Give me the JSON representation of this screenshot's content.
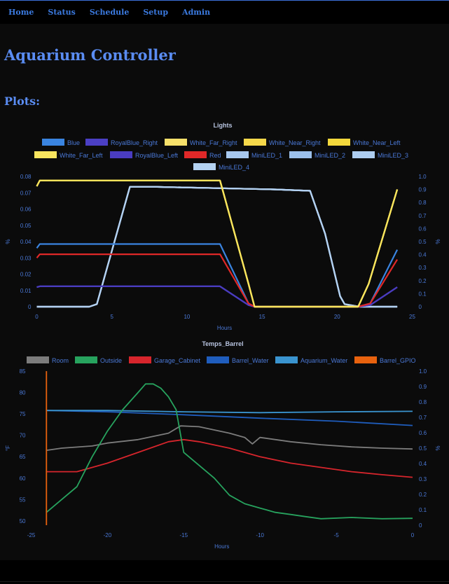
{
  "nav": {
    "items": [
      {
        "label": "Home"
      },
      {
        "label": "Status"
      },
      {
        "label": "Schedule"
      },
      {
        "label": "Setup"
      },
      {
        "label": "Admin"
      }
    ]
  },
  "page": {
    "title": "Aquarium Controller",
    "subtitle": "Plots:"
  },
  "colors": {
    "background": "#0b0b0b",
    "nav_link": "#3b7ae0",
    "heading": "#5a8cf2",
    "axis_text": "#4a78d6"
  },
  "chart_data": [
    {
      "type": "line",
      "title": "Lights",
      "xlabel": "Hours",
      "ylabel": "%",
      "y2label": "%",
      "xlim": [
        0,
        25
      ],
      "ylim": [
        0,
        0.08
      ],
      "y2lim": [
        0,
        1.0
      ],
      "x_ticks": [
        0,
        5,
        10,
        15,
        20,
        25
      ],
      "y_ticks": [
        0,
        0.01,
        0.02,
        0.03,
        0.04,
        0.05,
        0.06,
        0.07,
        0.08
      ],
      "y_tick_labels": [
        "0",
        "0.01",
        "0.02",
        "0.03",
        "0.04",
        "0.05",
        "0.06",
        "0.07",
        "0.08"
      ],
      "y2_ticks": [
        0,
        0.1,
        0.2,
        0.3,
        0.4,
        0.5,
        0.6,
        0.7,
        0.8,
        0.9,
        1.0
      ],
      "y2_tick_labels": [
        "0",
        "0.1",
        "0.2",
        "0.3",
        "0.4",
        "0.5",
        "0.6",
        "0.7",
        "0.8",
        "0.9",
        "1.0"
      ],
      "grid": false,
      "legend_position": "top",
      "series": [
        {
          "name": "Blue",
          "color": "#3a84e0",
          "axis": "y",
          "x": [
            0,
            0.2,
            12.2,
            14.1,
            14.5,
            21.4,
            22.2,
            24
          ],
          "y": [
            0.036,
            0.0385,
            0.0385,
            0.002,
            0,
            0,
            0.002,
            0.035
          ]
        },
        {
          "name": "RoyalBlue_Right",
          "color": "#4b3fc4",
          "axis": "y",
          "x": [
            0,
            0.2,
            12.2,
            14.1,
            14.5,
            21.4,
            22.2,
            24
          ],
          "y": [
            0.012,
            0.0125,
            0.0125,
            0.001,
            0,
            0,
            0.001,
            0.012
          ]
        },
        {
          "name": "White_Far_Right",
          "color": "#f7e06a",
          "axis": "y",
          "x": [
            0,
            0.2,
            12.2,
            14.1,
            14.5,
            21.4,
            22.1,
            24
          ],
          "y": [
            0.074,
            0.0775,
            0.0775,
            0.014,
            0,
            0,
            0.014,
            0.072
          ]
        },
        {
          "name": "White_Near_Right",
          "color": "#f5d84a",
          "axis": "y",
          "x": [
            0,
            0.2,
            12.2,
            14.1,
            14.5,
            21.4,
            22.1,
            24
          ],
          "y": [
            0.074,
            0.0775,
            0.0775,
            0.014,
            0,
            0,
            0.014,
            0.072
          ]
        },
        {
          "name": "White_Near_Left",
          "color": "#f3d83c",
          "axis": "y",
          "x": [
            0,
            0.2,
            12.2,
            14.1,
            14.5,
            21.4,
            22.1,
            24
          ],
          "y": [
            0.074,
            0.0775,
            0.0775,
            0.014,
            0,
            0,
            0.014,
            0.072
          ]
        },
        {
          "name": "White_Far_Left",
          "color": "#f9e55e",
          "axis": "y",
          "x": [
            0,
            0.2,
            12.2,
            14.1,
            14.5,
            21.4,
            22.1,
            24
          ],
          "y": [
            0.074,
            0.0775,
            0.0775,
            0.014,
            0,
            0,
            0.014,
            0.072
          ]
        },
        {
          "name": "RoyalBlue_Left",
          "color": "#4a3cc0",
          "axis": "y",
          "x": [
            0,
            0.2,
            12.2,
            14.1,
            14.5,
            21.4,
            22.2,
            24
          ],
          "y": [
            0.012,
            0.0125,
            0.0125,
            0.001,
            0,
            0,
            0.001,
            0.012
          ]
        },
        {
          "name": "Red",
          "color": "#e02828",
          "axis": "y",
          "x": [
            0,
            0.2,
            12.2,
            14.1,
            14.5,
            21.4,
            22.2,
            24
          ],
          "y": [
            0.03,
            0.0322,
            0.0322,
            0.002,
            0,
            0,
            0.002,
            0.029
          ]
        },
        {
          "name": "MiniLED_1",
          "color": "#a8c8ee",
          "axis": "y2",
          "x": [
            0,
            3.5,
            4,
            6.2,
            8,
            12,
            16,
            18.2,
            19.2,
            20.2,
            20.5,
            21.5,
            22,
            24
          ],
          "y": [
            0,
            0,
            0.02,
            0.92,
            0.92,
            0.91,
            0.9,
            0.89,
            0.56,
            0.08,
            0.02,
            0,
            0,
            0
          ]
        },
        {
          "name": "MiniLED_2",
          "color": "#9cc0ea",
          "axis": "y2",
          "x": [
            0,
            3.5,
            4,
            6.2,
            8,
            12,
            16,
            18.2,
            19.2,
            20.2,
            20.5,
            21.5,
            22,
            24
          ],
          "y": [
            0,
            0,
            0.02,
            0.92,
            0.92,
            0.91,
            0.9,
            0.89,
            0.56,
            0.08,
            0.02,
            0,
            0,
            0
          ]
        },
        {
          "name": "MiniLED_3",
          "color": "#aecdf0",
          "axis": "y2",
          "x": [
            0,
            3.5,
            4,
            6.2,
            8,
            12,
            16,
            18.2,
            19.2,
            20.2,
            20.5,
            21.5,
            22,
            24
          ],
          "y": [
            0,
            0,
            0.02,
            0.92,
            0.92,
            0.91,
            0.9,
            0.89,
            0.56,
            0.08,
            0.02,
            0,
            0,
            0
          ]
        },
        {
          "name": "MiniLED_4",
          "color": "#b4d2f2",
          "axis": "y2",
          "x": [
            0,
            3.5,
            4,
            6.2,
            8,
            12,
            16,
            18.2,
            19.2,
            20.2,
            20.5,
            21.5,
            22,
            24
          ],
          "y": [
            0,
            0,
            0.02,
            0.92,
            0.92,
            0.91,
            0.9,
            0.89,
            0.56,
            0.08,
            0.02,
            0,
            0,
            0
          ]
        }
      ]
    },
    {
      "type": "line",
      "title": "Temps_Barrel",
      "xlabel": "Hours",
      "ylabel": "°F",
      "y2label": "%",
      "xlim": [
        -25,
        0
      ],
      "ylim": [
        49,
        85
      ],
      "y2lim": [
        0,
        1.0
      ],
      "x_ticks": [
        -25,
        -20,
        -15,
        -10,
        -5,
        0
      ],
      "y_ticks": [
        50,
        55,
        60,
        65,
        70,
        75,
        80,
        85
      ],
      "y2_ticks": [
        0,
        0.1,
        0.2,
        0.3,
        0.4,
        0.5,
        0.6,
        0.7,
        0.8,
        0.9,
        1.0
      ],
      "y2_tick_labels": [
        "0",
        "0.1",
        "0.2",
        "0.3",
        "0.4",
        "0.5",
        "0.6",
        "0.7",
        "0.8",
        "0.9",
        "1.0"
      ],
      "grid": false,
      "legend_position": "top",
      "series": [
        {
          "name": "Room",
          "color": "#7c7c7c",
          "axis": "y",
          "x": [
            -24,
            -23,
            -21,
            -20,
            -18,
            -16,
            -15.2,
            -14,
            -12,
            -11,
            -10.5,
            -10,
            -8,
            -6,
            -4,
            -2,
            0
          ],
          "y": [
            66.5,
            67,
            67.5,
            68.2,
            69,
            70.5,
            72.2,
            72,
            70.5,
            69.5,
            68,
            69.5,
            68.5,
            67.8,
            67.3,
            67,
            66.8
          ]
        },
        {
          "name": "Outside",
          "color": "#27a35e",
          "axis": "y",
          "x": [
            -24,
            -23,
            -22,
            -21,
            -20,
            -19,
            -18,
            -17.5,
            -17,
            -16.5,
            -16,
            -15.5,
            -15,
            -14,
            -13,
            -12,
            -11,
            -10,
            -9,
            -8,
            -7,
            -6,
            -4,
            -2,
            0
          ],
          "y": [
            52,
            55,
            58,
            65,
            71,
            76,
            80,
            82,
            82,
            81,
            79,
            76,
            66,
            63,
            60,
            56,
            54,
            53,
            52,
            51.5,
            51,
            50.5,
            50.8,
            50.5,
            50.6
          ]
        },
        {
          "name": "Garage_Cabinet",
          "color": "#d7252c",
          "axis": "y",
          "x": [
            -24,
            -22,
            -20,
            -18,
            -16,
            -15,
            -14,
            -12,
            -10,
            -8,
            -6,
            -4,
            -2,
            0
          ],
          "y": [
            61.5,
            61.5,
            63.5,
            66,
            68.5,
            69,
            68.5,
            67,
            65,
            63.5,
            62.5,
            61.5,
            60.8,
            60.2
          ]
        },
        {
          "name": "Barrel_Water",
          "color": "#1f5dbd",
          "axis": "y",
          "x": [
            -24,
            -20,
            -15,
            -10,
            -5,
            0
          ],
          "y": [
            75.8,
            75.5,
            74.8,
            74,
            73.3,
            72.3
          ]
        },
        {
          "name": "Aquarium_Water",
          "color": "#3a94cf",
          "axis": "y",
          "x": [
            -24,
            -20,
            -15,
            -10,
            -5,
            0
          ],
          "y": [
            75.8,
            75.8,
            75.5,
            75.3,
            75.5,
            75.6
          ]
        },
        {
          "name": "Barrel_GPIO",
          "color": "#e8620e",
          "axis": "y2",
          "x": [
            -24,
            -24
          ],
          "y": [
            0,
            1.0
          ]
        }
      ]
    }
  ]
}
